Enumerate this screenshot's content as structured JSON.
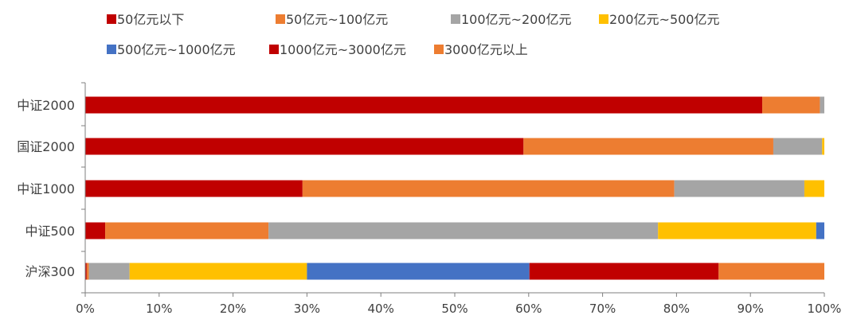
{
  "chart_data": {
    "type": "bar",
    "orientation": "horizontal",
    "stacked": true,
    "percent": true,
    "categories": [
      "中证2000",
      "国证2000",
      "中证1000",
      "中证500",
      "沪深300"
    ],
    "series": [
      {
        "name": "50亿元以下",
        "color": "#C00000",
        "values": [
          91.6,
          59.3,
          29.4,
          2.7,
          0.2
        ]
      },
      {
        "name": "50亿元~100亿元",
        "color": "#ED7D31",
        "values": [
          7.8,
          33.8,
          50.3,
          22.1,
          0.3
        ]
      },
      {
        "name": "100亿元~200亿元",
        "color": "#A5A5A5",
        "values": [
          0.6,
          6.6,
          17.6,
          52.7,
          5.5
        ]
      },
      {
        "name": "200亿元~500亿元",
        "color": "#FFC000",
        "values": [
          0.0,
          0.3,
          2.7,
          21.4,
          24.0
        ]
      },
      {
        "name": "500亿元~1000亿元",
        "color": "#4472C4",
        "values": [
          0.0,
          0.0,
          0.0,
          1.1,
          30.1
        ]
      },
      {
        "name": "1000亿元~3000亿元",
        "color": "#C00000",
        "values": [
          0.0,
          0.0,
          0.0,
          0.0,
          25.6
        ]
      },
      {
        "name": "3000亿元以上",
        "color": "#ED7D31",
        "values": [
          0.0,
          0.0,
          0.0,
          0.0,
          14.3
        ]
      }
    ],
    "x_ticks": [
      "0%",
      "10%",
      "20%",
      "30%",
      "40%",
      "50%",
      "60%",
      "70%",
      "80%",
      "90%",
      "100%"
    ],
    "xlim": [
      0,
      100
    ],
    "grid": false,
    "legend_position": "top"
  }
}
